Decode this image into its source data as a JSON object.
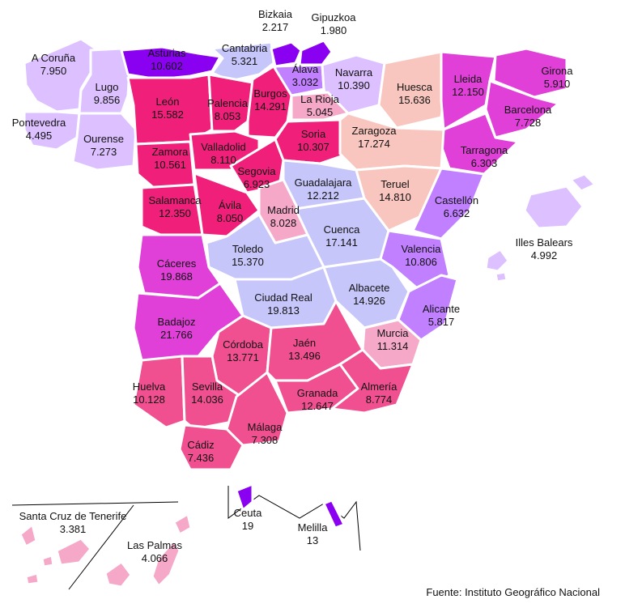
{
  "source": "Fuente: Instituto Geográfico Nacional",
  "colors": {
    "violet": "#8a00f0",
    "purple_light": "#ddc0ff",
    "purple_mid": "#c080ff",
    "magenta": "#e040d8",
    "pink_strong": "#f0207a",
    "pink_mid": "#f05090",
    "pink_light": "#f6a8c8",
    "salmon": "#f9c6bf",
    "lavender": "#c6c6fa",
    "border": "#ffffff"
  },
  "provinces": [
    {
      "key": "coruna",
      "name": "A Coruña",
      "value": "7.950"
    },
    {
      "key": "lugo",
      "name": "Lugo",
      "value": "9.856"
    },
    {
      "key": "pontevedra",
      "name": "Pontevedra",
      "value": "4.495"
    },
    {
      "key": "ourense",
      "name": "Ourense",
      "value": "7.273"
    },
    {
      "key": "asturias",
      "name": "Asturias",
      "value": "10.602"
    },
    {
      "key": "cantabria",
      "name": "Cantabria",
      "value": "5.321"
    },
    {
      "key": "bizkaia",
      "name": "Bizkaia",
      "value": "2.217"
    },
    {
      "key": "gipuzkoa",
      "name": "Gipuzkoa",
      "value": "1.980"
    },
    {
      "key": "alava",
      "name": "Álava",
      "value": "3.032"
    },
    {
      "key": "navarra",
      "name": "Navarra",
      "value": "10.390"
    },
    {
      "key": "huesca",
      "name": "Huesca",
      "value": "15.636"
    },
    {
      "key": "lleida",
      "name": "Lleida",
      "value": "12.150"
    },
    {
      "key": "girona",
      "name": "Girona",
      "value": "5.910"
    },
    {
      "key": "barcelona",
      "name": "Barcelona",
      "value": "7.728"
    },
    {
      "key": "tarragona",
      "name": "Tarragona",
      "value": "6.303"
    },
    {
      "key": "leon",
      "name": "León",
      "value": "15.582"
    },
    {
      "key": "palencia",
      "name": "Palencia",
      "value": "8.053"
    },
    {
      "key": "burgos",
      "name": "Burgos",
      "value": "14.291"
    },
    {
      "key": "larioja",
      "name": "La Rioja",
      "value": "5.045"
    },
    {
      "key": "soria",
      "name": "Soria",
      "value": "10.307"
    },
    {
      "key": "zaragoza",
      "name": "Zaragoza",
      "value": "17.274"
    },
    {
      "key": "zamora",
      "name": "Zamora",
      "value": "10.561"
    },
    {
      "key": "valladolid",
      "name": "Valladolid",
      "value": "8.110"
    },
    {
      "key": "segovia",
      "name": "Segovia",
      "value": "6.923"
    },
    {
      "key": "guadalajara",
      "name": "Guadalajara",
      "value": "12.212"
    },
    {
      "key": "teruel",
      "name": "Teruel",
      "value": "14.810"
    },
    {
      "key": "castellon",
      "name": "Castellón",
      "value": "6.632"
    },
    {
      "key": "salamanca",
      "name": "Salamanca",
      "value": "12.350"
    },
    {
      "key": "avila",
      "name": "Ávila",
      "value": "8.050"
    },
    {
      "key": "madrid",
      "name": "Madrid",
      "value": "8.028"
    },
    {
      "key": "cuenca",
      "name": "Cuenca",
      "value": "17.141"
    },
    {
      "key": "valencia",
      "name": "Valencia",
      "value": "10.806"
    },
    {
      "key": "baleares",
      "name": "Illes Balears",
      "value": "4.992"
    },
    {
      "key": "caceres",
      "name": "Cáceres",
      "value": "19.868"
    },
    {
      "key": "toledo",
      "name": "Toledo",
      "value": "15.370"
    },
    {
      "key": "ciudadreal",
      "name": "Ciudad Real",
      "value": "19.813"
    },
    {
      "key": "albacete",
      "name": "Albacete",
      "value": "14.926"
    },
    {
      "key": "alicante",
      "name": "Alicante",
      "value": "5.817"
    },
    {
      "key": "badajoz",
      "name": "Badajoz",
      "value": "21.766"
    },
    {
      "key": "cordoba",
      "name": "Córdoba",
      "value": "13.771"
    },
    {
      "key": "jaen",
      "name": "Jaén",
      "value": "13.496"
    },
    {
      "key": "murcia",
      "name": "Murcia",
      "value": "11.314"
    },
    {
      "key": "huelva",
      "name": "Huelva",
      "value": "10.128"
    },
    {
      "key": "sevilla",
      "name": "Sevilla",
      "value": "14.036"
    },
    {
      "key": "granada",
      "name": "Granada",
      "value": "12.647"
    },
    {
      "key": "almeria",
      "name": "Almería",
      "value": "8.774"
    },
    {
      "key": "malaga",
      "name": "Málaga",
      "value": "7.308"
    },
    {
      "key": "cadiz",
      "name": "Cádiz",
      "value": "7.436"
    },
    {
      "key": "tenerife",
      "name": "Santa Cruz de Tenerife",
      "value": "3.381"
    },
    {
      "key": "laspalmas",
      "name": "Las Palmas",
      "value": "4.066"
    },
    {
      "key": "ceuta",
      "name": "Ceuta",
      "value": "19"
    },
    {
      "key": "melilla",
      "name": "Melilla",
      "value": "13"
    }
  ]
}
